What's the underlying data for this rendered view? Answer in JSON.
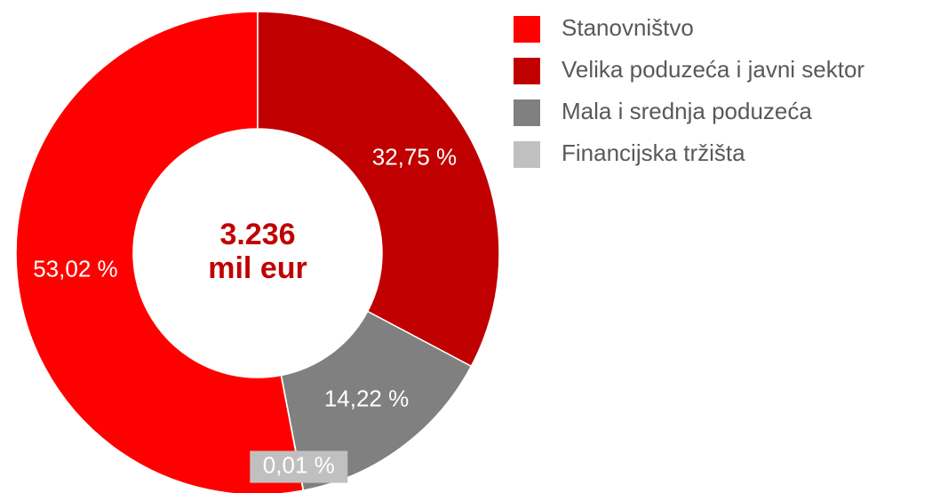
{
  "chart_data": {
    "type": "pie",
    "categories": [
      "Stanovništvo",
      "Velika poduzeća i javni sektor",
      "Mala i srednja poduzeća",
      "Financijska tržišta"
    ],
    "values": [
      53.02,
      32.75,
      14.22,
      0.01
    ],
    "value_labels": [
      "53,02 %",
      "32,75 %",
      "14,22 %",
      "0,01 %"
    ],
    "colors": [
      "#ff0000",
      "#c00000",
      "#808080",
      "#c0c0c0"
    ],
    "center_label": [
      "3.236",
      "mil eur"
    ],
    "legend": "top-right"
  }
}
